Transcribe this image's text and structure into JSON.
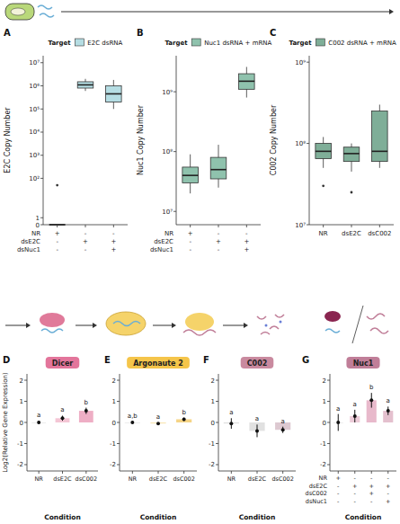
{
  "chart_data": [
    {
      "type": "box",
      "panel": "A",
      "legend_title": "Target",
      "ylabel": "E2C Copy Number",
      "log": "y",
      "ylim": [
        0,
        20000000
      ],
      "yticks": [
        0,
        1,
        {
          "value": 100,
          "label": "10²"
        },
        {
          "value": 1000,
          "label": "10³"
        },
        {
          "value": 10000,
          "label": "10⁴"
        },
        {
          "value": 100000,
          "label": "10⁵"
        },
        {
          "value": 1000000,
          "label": "10⁶"
        },
        {
          "value": 10000000,
          "label": "10⁷"
        }
      ],
      "categories": [
        null,
        null,
        null
      ],
      "condition_rows": [
        "NR",
        "dsE2C",
        "dsNuc1"
      ],
      "condition_cells": [
        [
          "+",
          "-",
          "-"
        ],
        [
          "-",
          "+",
          "+"
        ],
        [
          "-",
          "-",
          "+"
        ]
      ],
      "series": [
        {
          "name": "E2C dsRNA",
          "color": "#b5dde3",
          "whislo": [
            0,
            600000,
            100000
          ],
          "q1": [
            0,
            800000,
            200000
          ],
          "median": [
            0,
            1100000,
            450000
          ],
          "q3": [
            0,
            1500000,
            1000000
          ],
          "whishi": [
            0,
            2000000,
            1800000
          ],
          "outliers": [
            [
              50
            ],
            [],
            []
          ]
        }
      ]
    },
    {
      "type": "box",
      "panel": "B",
      "legend_title": "Target",
      "ylabel": "Nuc1 Copy Number",
      "log": "y",
      "ylim": [
        6000000,
        4000000000
      ],
      "yticks": [
        {
          "value": 10000000,
          "label": "10⁷"
        },
        {
          "value": 100000000,
          "label": "10⁸"
        },
        {
          "value": 1000000000,
          "label": "10⁹"
        }
      ],
      "categories": [
        null,
        null,
        null
      ],
      "condition_rows": [
        "NR",
        "dsE2C",
        "dsNuc1"
      ],
      "condition_cells": [
        [
          "+",
          "-",
          "-"
        ],
        [
          "-",
          "+",
          "+"
        ],
        [
          "-",
          "-",
          "+"
        ]
      ],
      "series": [
        {
          "name": "Nuc1 dsRNA + mRNA",
          "color": "#8fc2ad",
          "whislo": [
            20000000,
            25000000,
            800000000
          ],
          "q1": [
            30000000,
            35000000,
            1100000000
          ],
          "median": [
            40000000,
            50000000,
            1500000000
          ],
          "q3": [
            55000000,
            80000000,
            2000000000
          ],
          "whishi": [
            90000000,
            130000000,
            2600000000
          ],
          "outliers": [
            [],
            [],
            []
          ]
        }
      ]
    },
    {
      "type": "box",
      "panel": "C",
      "legend_title": "Target",
      "ylabel": "C002 Copy Number",
      "log": "y",
      "ylim": [
        10000000,
        1200000000
      ],
      "yticks": [
        {
          "value": 10000000,
          "label": "10⁷"
        },
        {
          "value": 100000000,
          "label": "10⁸"
        },
        {
          "value": 1000000000,
          "label": "10⁹"
        }
      ],
      "categories": [
        "NR",
        "dsE2C",
        "dsC002"
      ],
      "series": [
        {
          "name": "C002 dsRNA + mRNA",
          "color": "#7fae98",
          "whislo": [
            50000000,
            45000000,
            50000000
          ],
          "q1": [
            65000000,
            60000000,
            60000000
          ],
          "median": [
            80000000,
            75000000,
            80000000
          ],
          "q3": [
            100000000,
            90000000,
            250000000
          ],
          "whishi": [
            120000000,
            100000000,
            300000000
          ],
          "outliers": [
            [
              30000000
            ],
            [
              25000000
            ],
            []
          ]
        }
      ]
    },
    {
      "type": "bar",
      "panel": "D",
      "title": "Dicer",
      "color": "#e3759b",
      "ylabel": "Log2(Relative Gene Expression)",
      "xlabel": "Condition",
      "ylim": [
        -2.3,
        2.3
      ],
      "yticks": [
        -2,
        -1,
        0,
        1,
        2
      ],
      "categories": [
        "NR",
        "dsE2C",
        "dsC002"
      ],
      "values": [
        0,
        0.2,
        0.55
      ],
      "errors": [
        0.08,
        0.12,
        0.15
      ],
      "colors": [
        "#cfcfcf",
        "#f1b8cb",
        "#ea9ab6"
      ],
      "letters": [
        "a",
        "a",
        "b"
      ]
    },
    {
      "type": "bar",
      "panel": "E",
      "title": "Argonaute 2",
      "color": "#f5c54a",
      "xlabel": "Condition",
      "ylim": [
        -2.3,
        2.3
      ],
      "yticks": [
        -2,
        -1,
        0,
        1,
        2
      ],
      "categories": [
        "NR",
        "dsE2C",
        "dsC002"
      ],
      "values": [
        0,
        -0.05,
        0.15
      ],
      "errors": [
        0.06,
        0.05,
        0.08
      ],
      "colors": [
        "#cfcfcf",
        "#f8dfa0",
        "#f3c968"
      ],
      "letters": [
        "a,b",
        "a",
        "b"
      ]
    },
    {
      "type": "bar",
      "panel": "F",
      "title": "C002",
      "color": "#c98a9f",
      "xlabel": "Condition",
      "ylim": [
        -2.3,
        2.3
      ],
      "yticks": [
        -2,
        -1,
        0,
        1,
        2
      ],
      "categories": [
        "NR",
        "dsE2C",
        "dsC002"
      ],
      "values": [
        -0.05,
        -0.4,
        -0.35
      ],
      "errors": [
        0.25,
        0.3,
        0.15
      ],
      "colors": [
        "#d6d6d6",
        "#d9d9d9",
        "#d5bcc6"
      ],
      "letters": [
        "a",
        "a",
        "a"
      ]
    },
    {
      "type": "bar",
      "panel": "G",
      "title": "Nuc1",
      "color": "#c07e98",
      "xlabel": "Condition",
      "ylim": [
        -2.3,
        2.3
      ],
      "yticks": [
        -2,
        -1,
        0,
        1,
        2
      ],
      "categories": [
        null,
        null,
        null,
        null
      ],
      "condition_rows": [
        "NR",
        "dsE2C",
        "dsC002",
        "dsNuc1"
      ],
      "condition_cells": [
        [
          "+",
          "-",
          "-",
          "-"
        ],
        [
          "-",
          "+",
          "+",
          "+"
        ],
        [
          "-",
          "-",
          "+",
          "-"
        ],
        [
          "-",
          "-",
          "-",
          "+"
        ]
      ],
      "values": [
        0,
        0.3,
        1.05,
        0.55
      ],
      "errors": [
        0.4,
        0.3,
        0.35,
        0.2
      ],
      "colors": [
        "#d6d6d6",
        "#e8c0cf",
        "#e2a8be",
        "#ddb0c2"
      ],
      "letters": [
        "a",
        "a",
        "b",
        "a"
      ]
    }
  ]
}
